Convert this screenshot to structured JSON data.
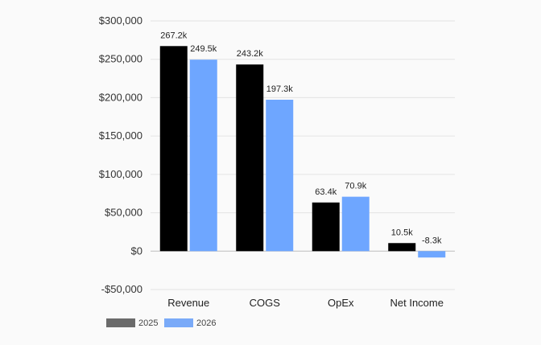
{
  "chart_data": {
    "type": "bar",
    "title": "",
    "xlabel": "",
    "ylabel": "",
    "categories": [
      "Revenue",
      "COGS",
      "OpEx",
      "Net Income"
    ],
    "ylim": [
      -50000,
      300000
    ],
    "yticks": [
      -50000,
      0,
      50000,
      100000,
      150000,
      200000,
      250000,
      300000
    ],
    "ytick_labels": [
      "-$50,000",
      "$0",
      "$50,000",
      "$100,000",
      "$150,000",
      "$200,000",
      "$250,000",
      "$300,000"
    ],
    "grid": true,
    "legend_position": "bottom-left",
    "series": [
      {
        "name": "2025",
        "color": "#000000",
        "legend_color": "#6b6b6b",
        "values": [
          267200,
          243200,
          63400,
          10500
        ],
        "labels": [
          "267.2k",
          "243.2k",
          "63.4k",
          "10.5k"
        ]
      },
      {
        "name": "2026",
        "color": "#6ea6ff",
        "legend_color": "#7aaaf8",
        "values": [
          249500,
          197300,
          70900,
          -8300
        ],
        "labels": [
          "249.5k",
          "197.3k",
          "70.9k",
          "-8.3k"
        ]
      }
    ]
  }
}
